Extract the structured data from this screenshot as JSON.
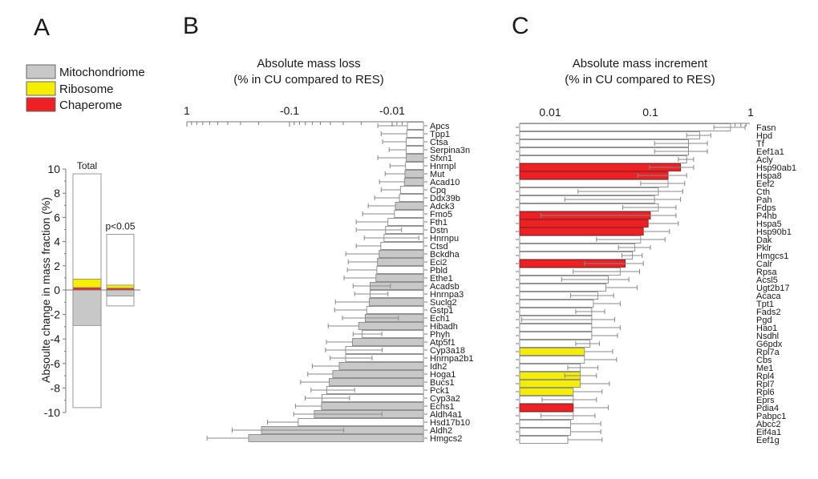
{
  "panels": {
    "a": {
      "letter": "A"
    },
    "b": {
      "letter": "B",
      "title_line1": "Absolute mass loss",
      "title_line2": "(% in CU compared to RES)"
    },
    "c": {
      "letter": "C",
      "title_line1": "Absolute mass increment",
      "title_line2": "(% in CU compared to RES)"
    }
  },
  "legend": [
    {
      "label": "Mitochondriome",
      "color": "#c8c8c8"
    },
    {
      "label": "Ribosome",
      "color": "#f5ee00"
    },
    {
      "label": "Chaperome",
      "color": "#ee2024"
    }
  ],
  "colors": {
    "none": "#ffffff",
    "mito": "#c8c8c8",
    "ribo": "#f5ee00",
    "chap": "#ee2024",
    "axis": "#777777"
  },
  "chart_data": [
    {
      "id": "A",
      "type": "bar",
      "title": "",
      "ylabel": "Absoulte  change in mass fraction (%)",
      "ylim": [
        -10,
        10
      ],
      "yticks": [
        10,
        8,
        6,
        4,
        2,
        0,
        -2,
        -4,
        -6,
        -8,
        -10
      ],
      "categories": [
        "Total",
        "p<0.05"
      ],
      "bars": [
        {
          "label": "Total",
          "top": 9.6,
          "bottom": -9.6,
          "segments": [
            {
              "category": "Chaperome",
              "from": 0,
              "to": 0.2
            },
            {
              "category": "Ribosome",
              "from": 0.2,
              "to": 0.9
            },
            {
              "category": "Mitochondriome",
              "from": 0,
              "to": -2.9
            }
          ]
        },
        {
          "label": "p<0.05",
          "top": 4.6,
          "bottom": -1.3,
          "segments": [
            {
              "category": "Chaperome",
              "from": 0,
              "to": 0.15
            },
            {
              "category": "Ribosome",
              "from": 0.15,
              "to": 0.4
            },
            {
              "category": "Mitochondriome",
              "from": 0,
              "to": -0.5
            }
          ]
        }
      ]
    },
    {
      "id": "B",
      "type": "bar",
      "orientation": "horizontal",
      "title": "Absolute mass loss (% in CU compared to RES)",
      "xscale": "log",
      "xlim": [
        -1,
        -0.005
      ],
      "xticks": [
        {
          "value": 1,
          "label": "1"
        },
        {
          "value": 0.1,
          "label": "-0.1"
        },
        {
          "value": 0.01,
          "label": "-0.01"
        }
      ],
      "note": "values are magnitudes of negative change; err_lo is the outer (larger-magnitude) error bar end, inner is an optional inner error end",
      "rows": [
        {
          "gene": "Apcs",
          "value": 0.0071,
          "err": 0.0138,
          "cat": "none"
        },
        {
          "gene": "Tpp1",
          "value": 0.0072,
          "err": 0.0128,
          "cat": "none"
        },
        {
          "gene": "Ctsa",
          "value": 0.0073,
          "err": 0.0124,
          "cat": "none"
        },
        {
          "gene": "Serpina3n",
          "value": 0.0073,
          "err": 0.0107,
          "cat": "none"
        },
        {
          "gene": "Sfxn1",
          "value": 0.0073,
          "err": 0.0138,
          "cat": "mito"
        },
        {
          "gene": "Hnrnpl",
          "value": 0.0074,
          "err": 0.0105,
          "cat": "none"
        },
        {
          "gene": "Mut",
          "value": 0.0075,
          "err": 0.0117,
          "cat": "mito"
        },
        {
          "gene": "Acad10",
          "value": 0.0076,
          "err": 0.0133,
          "cat": "mito"
        },
        {
          "gene": "Cpq",
          "value": 0.0083,
          "err": 0.0128,
          "cat": "none"
        },
        {
          "gene": "Ddx39b",
          "value": 0.0085,
          "err": 0.0148,
          "cat": "none"
        },
        {
          "gene": "Adck3",
          "value": 0.0093,
          "err": 0.0171,
          "cat": "mito"
        },
        {
          "gene": "Fmo5",
          "value": 0.0095,
          "err": 0.0194,
          "cat": "none"
        },
        {
          "gene": "Fth1",
          "value": 0.011,
          "err": 0.0224,
          "cat": "none"
        },
        {
          "gene": "Dstn",
          "value": 0.0116,
          "err": 0.0224,
          "cat": "none",
          "inner": 0.0081
        },
        {
          "gene": "Hnrnpu",
          "value": 0.012,
          "err": 0.0187,
          "cat": "none",
          "inner": 0.0055
        },
        {
          "gene": "Ctsd",
          "value": 0.0129,
          "err": 0.0224,
          "cat": "none"
        },
        {
          "gene": "Bckdha",
          "value": 0.0134,
          "err": 0.0283,
          "cat": "mito"
        },
        {
          "gene": "Eci2",
          "value": 0.0139,
          "err": 0.0268,
          "cat": "mito"
        },
        {
          "gene": "Pbld",
          "value": 0.0141,
          "err": 0.0273,
          "cat": "none"
        },
        {
          "gene": "Ethe1",
          "value": 0.0144,
          "err": 0.0294,
          "cat": "mito"
        },
        {
          "gene": "Acadsb",
          "value": 0.0164,
          "err": 0.024,
          "cat": "mito",
          "inner": 0.0104
        },
        {
          "gene": "Hnrnpa3",
          "value": 0.0164,
          "err": 0.0232,
          "cat": "none",
          "inner": 0.011
        },
        {
          "gene": "Suclg2",
          "value": 0.0167,
          "err": 0.0357,
          "cat": "mito"
        },
        {
          "gene": "Gstp1",
          "value": 0.0177,
          "err": 0.0364,
          "cat": "none"
        },
        {
          "gene": "Ech1",
          "value": 0.0183,
          "err": 0.0305,
          "cat": "mito",
          "inner": 0.0087
        },
        {
          "gene": "Hibadh",
          "value": 0.0212,
          "err": 0.042,
          "cat": "mito"
        },
        {
          "gene": "Phyh",
          "value": 0.0196,
          "err": 0.024,
          "cat": "none",
          "inner": 0.0126
        },
        {
          "gene": "Atp5f1",
          "value": 0.0244,
          "err": 0.0437,
          "cat": "mito"
        },
        {
          "gene": "Cyp3a18",
          "value": 0.0284,
          "err": 0.0446,
          "cat": "none",
          "inner": 0.0125
        },
        {
          "gene": "Hnrnpa2b1",
          "value": 0.0284,
          "err": 0.0402,
          "cat": "none",
          "inner": 0.0157
        },
        {
          "gene": "Idh2",
          "value": 0.0328,
          "err": 0.06,
          "cat": "mito"
        },
        {
          "gene": "Hoga1",
          "value": 0.0379,
          "err": 0.0664,
          "cat": "mito"
        },
        {
          "gene": "Bucs1",
          "value": 0.041,
          "err": 0.078,
          "cat": "mito"
        },
        {
          "gene": "Pck1",
          "value": 0.0433,
          "err": 0.0617,
          "cat": "none",
          "inner": 0.0232
        },
        {
          "gene": "Cyp3a2",
          "value": 0.0483,
          "err": 0.0704,
          "cat": "none",
          "inner": 0.026
        },
        {
          "gene": "Echs1",
          "value": 0.0488,
          "err": 0.0876,
          "cat": "mito"
        },
        {
          "gene": "Aldh4a1",
          "value": 0.0574,
          "err": 0.091,
          "cat": "mito",
          "inner": 0.0126
        },
        {
          "gene": "Hsd17b10",
          "value": 0.0822,
          "err": 0.164,
          "cat": "none"
        },
        {
          "gene": "Aldh2",
          "value": 0.1877,
          "err": 0.362,
          "cat": "mito",
          "inner": 0.0296
        },
        {
          "gene": "Hmgcs2",
          "value": 0.25,
          "err": 0.636,
          "cat": "mito"
        }
      ]
    },
    {
      "id": "C",
      "type": "bar",
      "orientation": "horizontal",
      "title": "Absolute mass increment (% in CU compared to RES)",
      "xscale": "log",
      "xlim": [
        0.005,
        1
      ],
      "xticks": [
        {
          "value": 0.01,
          "label": "0.01"
        },
        {
          "value": 0.1,
          "label": "0.1"
        },
        {
          "value": 1,
          "label": "1"
        }
      ],
      "rows": [
        {
          "gene": "Fasn",
          "value": 0.63,
          "err": 0.88,
          "cat": "none",
          "inner": 0.43
        },
        {
          "gene": "Hpd",
          "value": 0.31,
          "err": 0.4,
          "cat": "none",
          "inner": 0.23
        },
        {
          "gene": "Tf",
          "value": 0.24,
          "err": 0.37,
          "cat": "none",
          "inner": 0.11
        },
        {
          "gene": "Eef1a1",
          "value": 0.24,
          "err": 0.37,
          "cat": "none",
          "inner": 0.11
        },
        {
          "gene": "Acly",
          "value": 0.23,
          "err": 0.27,
          "cat": "none",
          "inner": 0.19
        },
        {
          "gene": "Hsp90ab1",
          "value": 0.2,
          "err": 0.27,
          "cat": "chap",
          "inner": 0.098
        },
        {
          "gene": "Hspa8",
          "value": 0.15,
          "err": 0.23,
          "cat": "chap",
          "inner": 0.075
        },
        {
          "gene": "Eef2",
          "value": 0.15,
          "err": 0.22,
          "cat": "none",
          "inner": 0.08
        },
        {
          "gene": "Cth",
          "value": 0.12,
          "err": 0.21,
          "cat": "none",
          "inner": 0.019
        },
        {
          "gene": "Pah",
          "value": 0.11,
          "err": 0.2,
          "cat": "none",
          "inner": 0.014
        },
        {
          "gene": "Fdps",
          "value": 0.12,
          "err": 0.18,
          "cat": "none",
          "inner": 0.053
        },
        {
          "gene": "P4hb",
          "value": 0.1,
          "err": 0.18,
          "cat": "chap",
          "inner": 0.0081
        },
        {
          "gene": "Hspa5",
          "value": 0.095,
          "err": 0.19,
          "cat": "chap"
        },
        {
          "gene": "Hsp90b1",
          "value": 0.085,
          "err": 0.155,
          "cat": "chap"
        },
        {
          "gene": "Dak",
          "value": 0.08,
          "err": 0.14,
          "cat": "none",
          "inner": 0.029
        },
        {
          "gene": "Pklr",
          "value": 0.07,
          "err": 0.1,
          "cat": "none",
          "inner": 0.048
        },
        {
          "gene": "Hmgcs1",
          "value": 0.066,
          "err": 0.083,
          "cat": "none",
          "inner": 0.052
        },
        {
          "gene": "Calr",
          "value": 0.056,
          "err": 0.085,
          "cat": "chap",
          "inner": 0.022
        },
        {
          "gene": "Rpsa",
          "value": 0.05,
          "err": 0.078,
          "cat": "none",
          "inner": 0.017
        },
        {
          "gene": "Acsl5",
          "value": 0.038,
          "err": 0.061,
          "cat": "none",
          "inner": 0.013
        },
        {
          "gene": "Ugt2b17",
          "value": 0.036,
          "err": 0.074,
          "cat": "none"
        },
        {
          "gene": "Acaca",
          "value": 0.03,
          "err": 0.043,
          "cat": "none",
          "inner": 0.016
        },
        {
          "gene": "Tpt1",
          "value": 0.027,
          "err": 0.05,
          "cat": "none"
        },
        {
          "gene": "Fads2",
          "value": 0.026,
          "err": 0.035,
          "cat": "none",
          "inner": 0.018
        },
        {
          "gene": "Pgd",
          "value": 0.026,
          "err": 0.044,
          "cat": "none",
          "inner": 0.0052
        },
        {
          "gene": "Hao1",
          "value": 0.026,
          "err": 0.05,
          "cat": "none"
        },
        {
          "gene": "Nsdhl",
          "value": 0.026,
          "err": 0.047,
          "cat": "none"
        },
        {
          "gene": "G6pdx",
          "value": 0.025,
          "err": 0.031,
          "cat": "none",
          "inner": 0.018
        },
        {
          "gene": "Rpl7a",
          "value": 0.022,
          "err": 0.042,
          "cat": "ribo"
        },
        {
          "gene": "Cbs",
          "value": 0.022,
          "err": 0.046,
          "cat": "none"
        },
        {
          "gene": "Me1",
          "value": 0.02,
          "err": 0.03,
          "cat": "none",
          "inner": 0.015
        },
        {
          "gene": "Rpl4",
          "value": 0.02,
          "err": 0.029,
          "cat": "ribo",
          "inner": 0.014
        },
        {
          "gene": "Rpl7",
          "value": 0.02,
          "err": 0.039,
          "cat": "ribo"
        },
        {
          "gene": "Rpl6",
          "value": 0.017,
          "err": 0.033,
          "cat": "ribo"
        },
        {
          "gene": "Eprs",
          "value": 0.017,
          "err": 0.029,
          "cat": "none",
          "inner": 0.0083
        },
        {
          "gene": "Pdia4",
          "value": 0.017,
          "err": 0.038,
          "cat": "chap"
        },
        {
          "gene": "Pabpc1",
          "value": 0.017,
          "err": 0.028,
          "cat": "none",
          "inner": 0.0081
        },
        {
          "gene": "Abcc2",
          "value": 0.016,
          "err": 0.032,
          "cat": "none"
        },
        {
          "gene": "Eif4a1",
          "value": 0.016,
          "err": 0.032,
          "cat": "none"
        },
        {
          "gene": "Eef1g",
          "value": 0.015,
          "err": 0.033,
          "cat": "none"
        }
      ]
    }
  ]
}
